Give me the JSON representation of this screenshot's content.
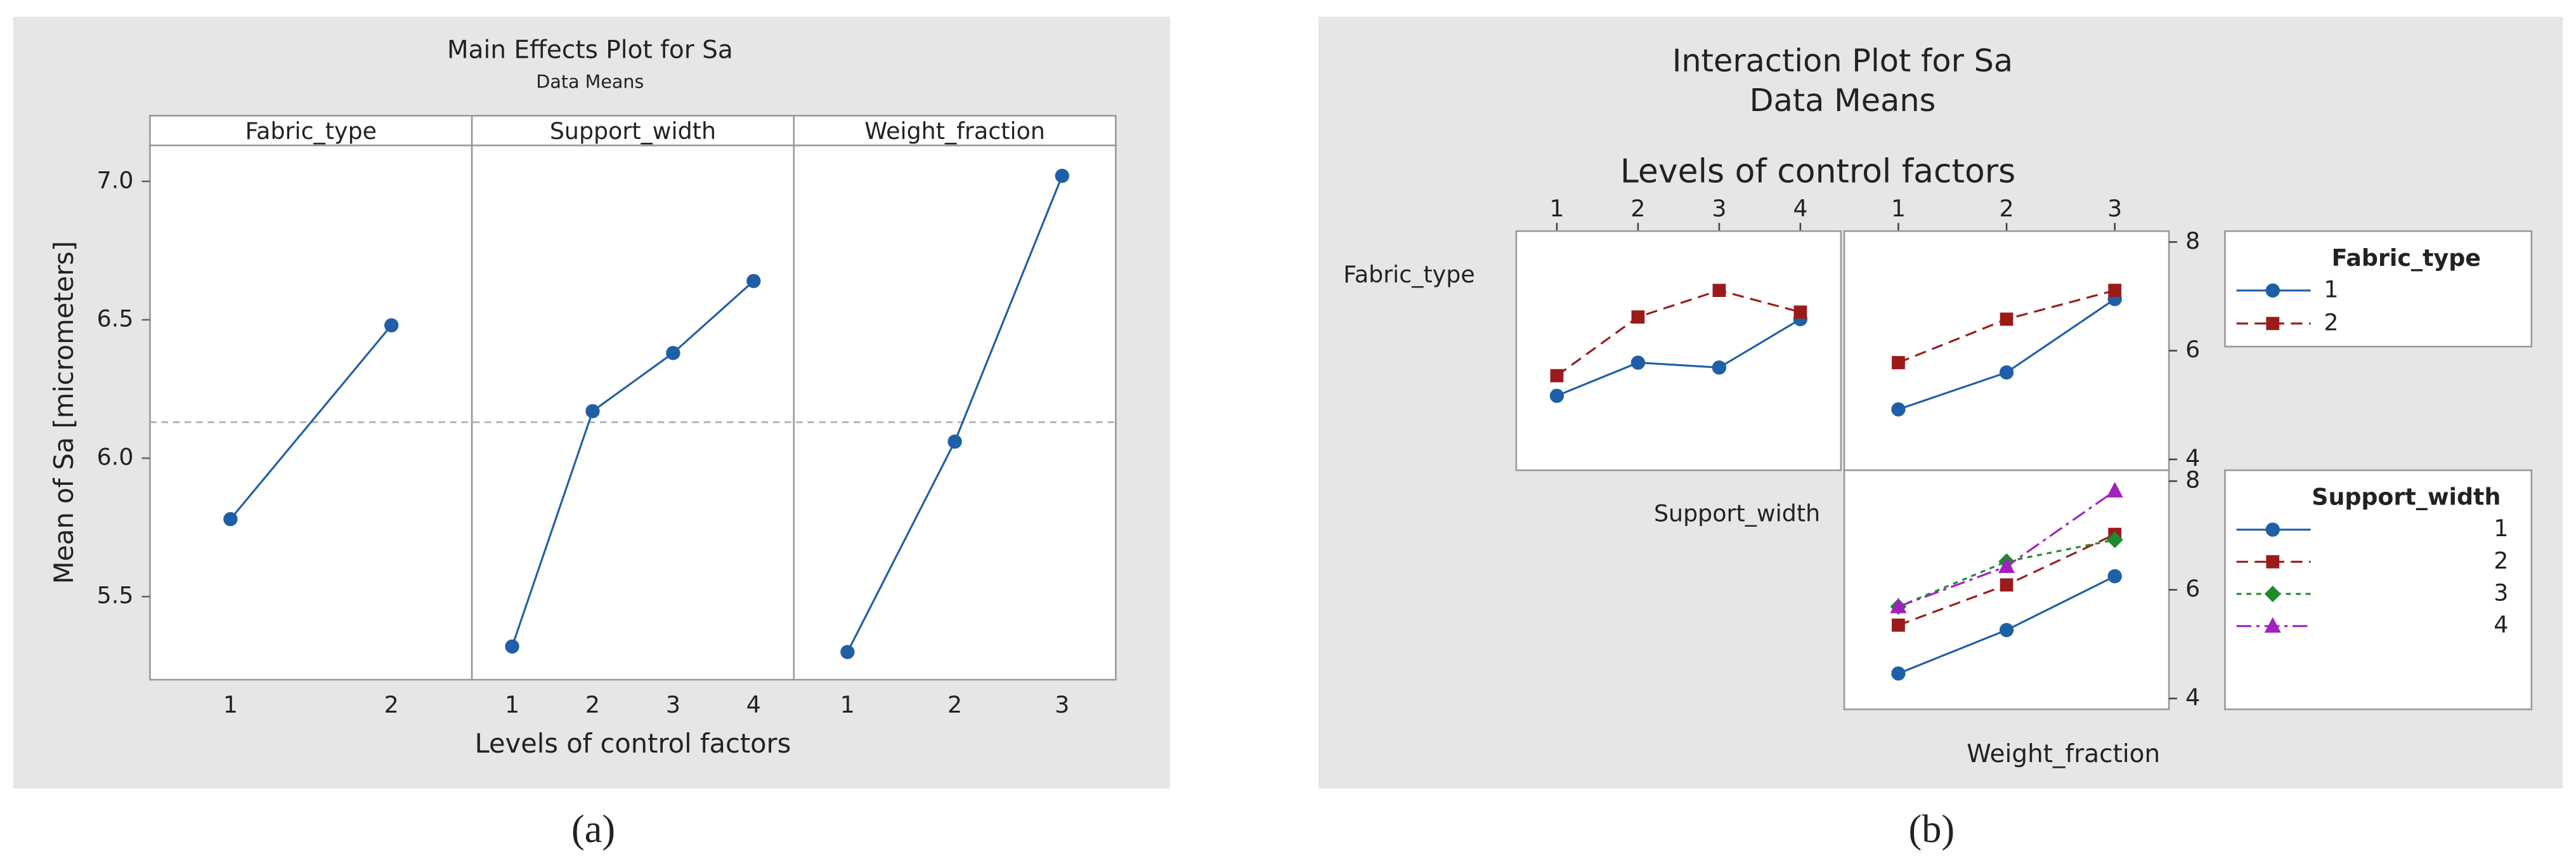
{
  "chart_data": [
    {
      "type": "line",
      "title": "Main Effects Plot for Sa",
      "subtitle": "Data Means",
      "y_label": "Mean of Sa [micrometers]",
      "x_label": "Levels of control factors",
      "caption": "(a)",
      "color": "#1f5fa8",
      "ylim": [
        5.2,
        7.13
      ],
      "yticks": [
        5.5,
        {
          "value": 6,
          "label": "6.0"
        },
        6.5,
        {
          "value": 7,
          "label": "7.0"
        }
      ],
      "mean": 6.13,
      "panels": [
        {
          "name": "Fabric_type",
          "categories": [
            "1",
            "2"
          ],
          "values": [
            5.78,
            6.48
          ]
        },
        {
          "name": "Support_width",
          "categories": [
            "1",
            "2",
            "3",
            "4"
          ],
          "values": [
            5.32,
            6.17,
            6.38,
            6.64
          ]
        },
        {
          "name": "Weight_fraction",
          "categories": [
            "1",
            "2",
            "3"
          ],
          "values": [
            5.3,
            6.06,
            7.02
          ]
        }
      ]
    },
    {
      "type": "interaction",
      "title": "Interaction Plot for Sa",
      "subtitle": "Data Means",
      "x_label": "Levels of control factors",
      "caption": "(b)",
      "ylim": [
        3.8,
        8.2
      ],
      "yticks": [
        4,
        6,
        8
      ],
      "columns": [
        {
          "levels": [
            "1",
            "2",
            "3",
            "4"
          ]
        },
        {
          "name": "Weight_fraction",
          "levels": [
            "1",
            "2",
            "3"
          ]
        }
      ],
      "rows": [
        {
          "name": "Fabric_type",
          "series": [
            {
              "name": "1",
              "color": "#1f5fa8",
              "marker": "circle",
              "dash": "solid",
              "panels": [
                [
                  5.17,
                  5.78,
                  5.69,
                  6.58
                ],
                [
                  4.92,
                  5.6,
                  6.95
                ]
              ]
            },
            {
              "name": "2",
              "color": "#9b1b1b",
              "marker": "square",
              "dash": "dashed",
              "panels": [
                [
                  5.54,
                  6.62,
                  7.11,
                  6.71
                ],
                [
                  5.78,
                  6.58,
                  7.11
                ]
              ]
            }
          ]
        },
        {
          "name": "Support_width",
          "series": [
            {
              "name": "1",
              "color": "#1f5fa8",
              "marker": "circle",
              "dash": "solid",
              "panels": [
                null,
                [
                  4.46,
                  5.26,
                  6.25
                ]
              ]
            },
            {
              "name": "2",
              "color": "#9b1b1b",
              "marker": "square",
              "dash": "dashed",
              "panels": [
                null,
                [
                  5.35,
                  6.09,
                  7.02
                ]
              ]
            },
            {
              "name": "3",
              "color": "#1e8a2e",
              "marker": "diamond",
              "dash": "dotted",
              "panels": [
                null,
                [
                  5.69,
                  6.52,
                  6.92
                ]
              ]
            },
            {
              "name": "4",
              "color": "#a020c0",
              "marker": "triangle",
              "dash": "dashdot",
              "panels": [
                null,
                [
                  5.69,
                  6.43,
                  7.82
                ]
              ]
            }
          ]
        }
      ]
    }
  ]
}
